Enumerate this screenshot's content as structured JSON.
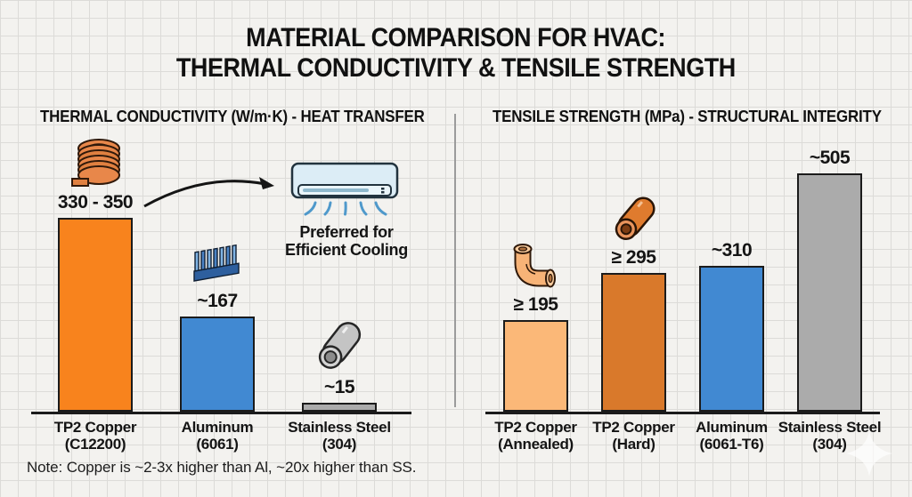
{
  "page": {
    "title_line1": "MATERIAL COMPARISON FOR HVAC:",
    "title_line2": "THERMAL CONDUCTIVITY & TENSILE STRENGTH",
    "note": "Note: Copper is ~2-3x higher than Al, ~20x higher than SS.",
    "watermark_icon": "sparkle-icon",
    "colors": {
      "background": "#f3f2ef",
      "grid_line": "#dcdbd8",
      "text": "#141414",
      "axis": "#1b1b1b",
      "copper_bright_orange": "#F8831D",
      "copper_annealed_light": "#FBB878",
      "copper_hard_orange": "#D9792B",
      "aluminum_blue": "#4189D2",
      "steel_gray": "#ABABAB"
    }
  },
  "chart_data": [
    {
      "type": "bar",
      "title": "THERMAL CONDUCTIVITY (W/m·K) - HEAT TRANSFER",
      "unit": "W/m·K",
      "ylim": [
        0,
        400
      ],
      "grid": false,
      "legend": false,
      "categories": [
        "TP2 Copper (C12200)",
        "Aluminum (6061)",
        "Stainless Steel (304)"
      ],
      "values": [
        340,
        167,
        15
      ],
      "bars": [
        {
          "category": "TP2 Copper",
          "spec": "(C12200)",
          "value": 340,
          "value_label": "330 - 350",
          "color": "#F8831D",
          "icon": "copper-coil-icon"
        },
        {
          "category": "Aluminum",
          "spec": "(6061)",
          "value": 167,
          "value_label": "~167",
          "color": "#4189D2",
          "icon": "heatsink-icon"
        },
        {
          "category": "Stainless Steel",
          "spec": "(304)",
          "value": 15,
          "value_label": "~15",
          "color": "#ABABAB",
          "icon": "steel-tube-icon"
        }
      ],
      "annotation": {
        "line1": "Preferred for",
        "line2": "Efficient Cooling",
        "icon": "air-conditioner-icon",
        "arrow": true
      }
    },
    {
      "type": "bar",
      "title": "TENSILE STRENGTH (MPa) - STRUCTURAL INTEGRITY",
      "unit": "MPa",
      "ylim": [
        0,
        550
      ],
      "grid": false,
      "legend": false,
      "categories": [
        "TP2 Copper (Annealed)",
        "TP2 Copper (Hard)",
        "Aluminum (6061-T6)",
        "Stainless Steel (304)"
      ],
      "values": [
        195,
        295,
        310,
        505
      ],
      "bars": [
        {
          "category": "TP2 Copper",
          "spec": "(Annealed)",
          "value": 195,
          "value_label": "≥ 195",
          "color": "#FBB878",
          "icon": "copper-elbow-icon"
        },
        {
          "category": "TP2 Copper",
          "spec": "(Hard)",
          "value": 295,
          "value_label": "≥ 295",
          "color": "#D9792B",
          "icon": "copper-tube-icon"
        },
        {
          "category": "Aluminum",
          "spec": "(6061-T6)",
          "value": 310,
          "value_label": "~310",
          "color": "#4189D2",
          "icon": null
        },
        {
          "category": "Stainless Steel",
          "spec": "(304)",
          "value": 505,
          "value_label": "~505",
          "color": "#ABABAB",
          "icon": null
        }
      ]
    }
  ]
}
